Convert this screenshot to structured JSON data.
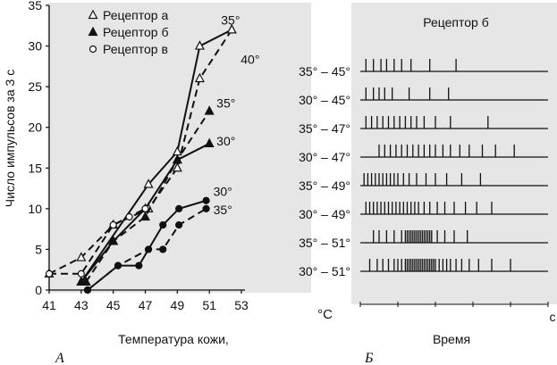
{
  "chart_data": [
    {
      "type": "line",
      "panel_label": "А",
      "ylabel": "Число импульсов за 3 с",
      "xlabel": "Температура кожи,",
      "x_unit": "°C",
      "x_ticks": [
        "41",
        "43",
        "45",
        "47",
        "49",
        "51",
        "53"
      ],
      "y_ticks": [
        "0",
        "5",
        "10",
        "15",
        "20",
        "25",
        "30",
        "35"
      ],
      "xlim": [
        41,
        53
      ],
      "ylim": [
        0,
        35
      ],
      "legend_position": "top-right",
      "legend": [
        "Рецептор а",
        "Рецептор б",
        "Рецептор в"
      ],
      "series": [
        {
          "name": "Рецептор а",
          "marker": "open-triangle",
          "line": "solid",
          "x": [
            43,
            47.2,
            49,
            50.4,
            52.4
          ],
          "y": [
            1,
            13,
            17,
            30,
            32
          ],
          "end_label": "35°"
        },
        {
          "name": "Рецептор а",
          "marker": "open-triangle",
          "line": "dashed",
          "x": [
            41,
            43,
            45,
            47.2,
            49,
            50.4,
            52.4
          ],
          "y": [
            2,
            4,
            8,
            10,
            15,
            26,
            32
          ],
          "end_label": "40°"
        },
        {
          "name": "Рецептор б",
          "marker": "filled-triangle",
          "line": "dashed",
          "x": [
            43.3,
            45,
            47,
            49,
            51
          ],
          "y": [
            1,
            6,
            9,
            16,
            22
          ],
          "end_label": "35°"
        },
        {
          "name": "Рецептор б",
          "marker": "filled-triangle",
          "line": "solid",
          "x": [
            43,
            45,
            47,
            49,
            51
          ],
          "y": [
            1,
            6,
            10,
            16,
            18
          ],
          "end_label": "30°"
        },
        {
          "name": "Рецептор в",
          "marker": "filled-circle",
          "line": "solid",
          "x": [
            43.4,
            45.3,
            46.6,
            48.1,
            49.1,
            50.8
          ],
          "y": [
            0,
            3,
            3,
            8,
            10,
            11
          ],
          "end_label": "30°"
        },
        {
          "name": "Рецептор в",
          "marker": "filled-circle",
          "line": "dashed",
          "x": [
            43.4,
            45.3,
            47.2,
            48.1,
            49.1,
            50.8
          ],
          "y": [
            0,
            3,
            5,
            5,
            8,
            10
          ],
          "end_label": "35°"
        },
        {
          "name": "",
          "marker": "open-circle",
          "line": "dashed",
          "x": [
            41,
            43,
            45,
            46,
            47
          ],
          "y": [
            2,
            2,
            8,
            9,
            10
          ],
          "end_label": ""
        }
      ]
    },
    {
      "type": "raster",
      "panel_label": "Б",
      "title": "Рецептор б",
      "xlabel": "Время",
      "x_unit": "с",
      "xlim": [
        0,
        1
      ],
      "rows": [
        {
          "label": "35° – 45°",
          "spikes": [
            0.03,
            0.07,
            0.11,
            0.14,
            0.18,
            0.22,
            0.27,
            0.37,
            0.51
          ]
        },
        {
          "label": "30° – 45°",
          "spikes": [
            0.03,
            0.07,
            0.1,
            0.13,
            0.17,
            0.26,
            0.37,
            0.47
          ]
        },
        {
          "label": "35° – 47°",
          "spikes": [
            0.03,
            0.06,
            0.09,
            0.12,
            0.15,
            0.18,
            0.21,
            0.24,
            0.27,
            0.3,
            0.34,
            0.4,
            0.48,
            0.68
          ]
        },
        {
          "label": "30° – 47°",
          "spikes": [
            0.1,
            0.13,
            0.16,
            0.19,
            0.22,
            0.25,
            0.28,
            0.31,
            0.34,
            0.37,
            0.4,
            0.44,
            0.48,
            0.53,
            0.58,
            0.65,
            0.72,
            0.82
          ]
        },
        {
          "label": "35° – 49°",
          "spikes": [
            0.02,
            0.04,
            0.06,
            0.08,
            0.1,
            0.12,
            0.14,
            0.16,
            0.18,
            0.2,
            0.23,
            0.26,
            0.3,
            0.35,
            0.4,
            0.46,
            0.54,
            0.64
          ]
        },
        {
          "label": "30° – 49°",
          "spikes": [
            0.03,
            0.05,
            0.07,
            0.09,
            0.11,
            0.13,
            0.15,
            0.17,
            0.19,
            0.21,
            0.23,
            0.25,
            0.27,
            0.29,
            0.31,
            0.34,
            0.37,
            0.41,
            0.45,
            0.5,
            0.56,
            0.62,
            0.7
          ]
        },
        {
          "label": "35° – 51°",
          "spikes": [
            0.07,
            0.1,
            0.14,
            0.18,
            0.22,
            0.24,
            0.25,
            0.26,
            0.27,
            0.28,
            0.29,
            0.3,
            0.31,
            0.32,
            0.33,
            0.34,
            0.35,
            0.36,
            0.37,
            0.38,
            0.41,
            0.45,
            0.5,
            0.57
          ]
        },
        {
          "label": "30° – 51°",
          "spikes": [
            0.05,
            0.09,
            0.12,
            0.15,
            0.18,
            0.2,
            0.22,
            0.24,
            0.25,
            0.26,
            0.27,
            0.28,
            0.29,
            0.3,
            0.31,
            0.32,
            0.33,
            0.34,
            0.35,
            0.36,
            0.37,
            0.38,
            0.39,
            0.4,
            0.42,
            0.44,
            0.46,
            0.48,
            0.51,
            0.54,
            0.58,
            0.63,
            0.7,
            0.8
          ]
        }
      ]
    }
  ],
  "colors": {
    "ink": "#111111",
    "panel_bg": "#e6e6e6",
    "page_bg": "#ffffff"
  }
}
